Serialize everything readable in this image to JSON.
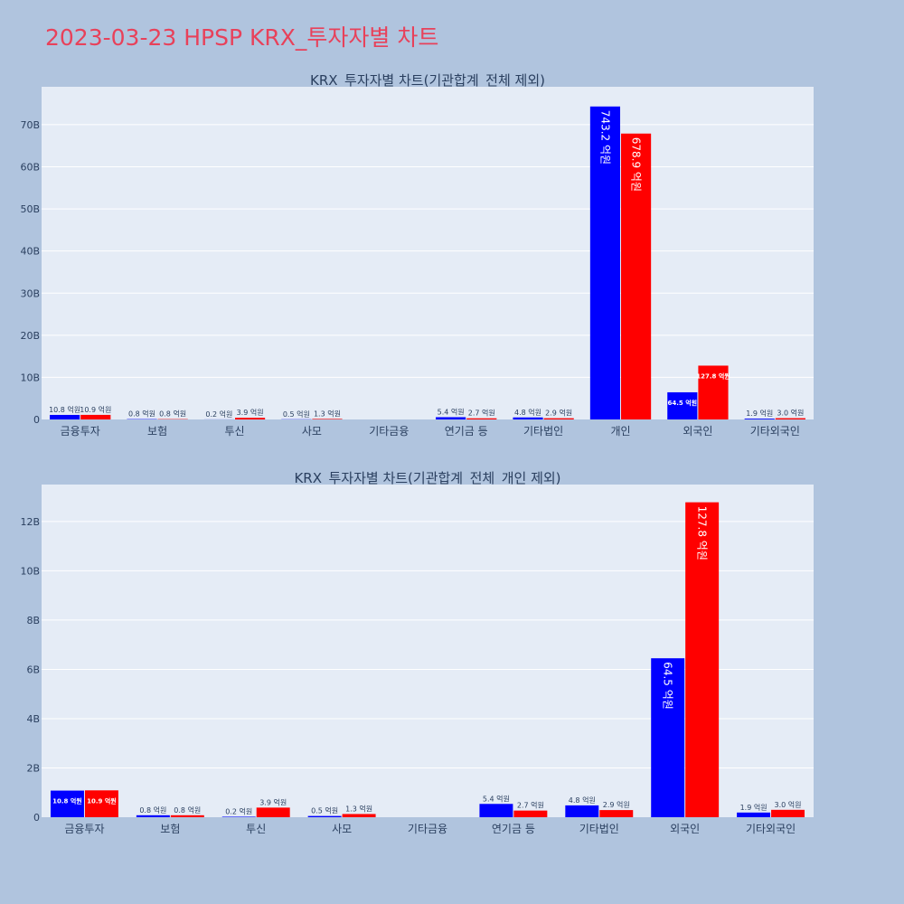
{
  "title": "2023-03-23 HPSP KRX_투자자별 차트",
  "colors": {
    "page_bg": "#b0c4de",
    "plot_bg": "#e5ecf6",
    "title": "#e8415a",
    "text": "#2a3f5f",
    "series_blue": "#0000ff",
    "series_red": "#ff0000"
  },
  "chart_data": [
    {
      "type": "bar",
      "title": "KRX_투자자별 차트(기관합계_전체 제외)",
      "categories": [
        "금융투자",
        "보험",
        "투신",
        "사모",
        "기타금융",
        "연기금 등",
        "기타법인",
        "개인",
        "외국인",
        "기타외국인"
      ],
      "series": [
        {
          "color": "#0000ff",
          "values": [
            1.08,
            0.08,
            0.02,
            0.05,
            0,
            0.54,
            0.48,
            74.32,
            6.45,
            0.19
          ],
          "labels": [
            "10.8 억원",
            "0.8 억원",
            "0.2 억원",
            "0.5 억원",
            "",
            "5.4 억원",
            "4.8 억원",
            "743.2 억원",
            "64.5 억원",
            "1.9 억원"
          ]
        },
        {
          "color": "#ff0000",
          "values": [
            1.09,
            0.08,
            0.39,
            0.13,
            0,
            0.27,
            0.29,
            67.89,
            12.78,
            0.3
          ],
          "labels": [
            "10.9 억원",
            "0.8 억원",
            "3.9 억원",
            "1.3 억원",
            "",
            "2.7 억원",
            "2.9 억원",
            "678.9 억원",
            "127.8 억원",
            "3.0 억원"
          ]
        }
      ],
      "ylim": [
        0,
        79
      ],
      "yticks": [
        0,
        10,
        20,
        30,
        40,
        50,
        60,
        70
      ],
      "ytick_labels": [
        "0",
        "10B",
        "20B",
        "30B",
        "40B",
        "50B",
        "60B",
        "70B"
      ],
      "grid": true
    },
    {
      "type": "bar",
      "title": "KRX_투자자별 차트(기관합계_전체_개인 제외)",
      "categories": [
        "금융투자",
        "보험",
        "투신",
        "사모",
        "기타금융",
        "연기금 등",
        "기타법인",
        "외국인",
        "기타외국인"
      ],
      "series": [
        {
          "color": "#0000ff",
          "values": [
            1.08,
            0.08,
            0.02,
            0.05,
            0,
            0.54,
            0.48,
            6.45,
            0.19
          ],
          "labels": [
            "10.8 억원",
            "0.8 억원",
            "0.2 억원",
            "0.5 억원",
            "",
            "5.4 억원",
            "4.8 억원",
            "64.5 억원",
            "1.9 억원"
          ]
        },
        {
          "color": "#ff0000",
          "values": [
            1.09,
            0.08,
            0.39,
            0.13,
            0,
            0.27,
            0.29,
            12.78,
            0.3
          ],
          "labels": [
            "10.9 억원",
            "0.8 억원",
            "3.9 억원",
            "1.3 억원",
            "",
            "2.7 억원",
            "2.9 억원",
            "127.8 억원",
            "3.0 억원"
          ]
        }
      ],
      "ylim": [
        0,
        13.5
      ],
      "yticks": [
        0,
        2,
        4,
        6,
        8,
        10,
        12
      ],
      "ytick_labels": [
        "0",
        "2B",
        "4B",
        "6B",
        "8B",
        "10B",
        "12B"
      ],
      "grid": true
    }
  ]
}
